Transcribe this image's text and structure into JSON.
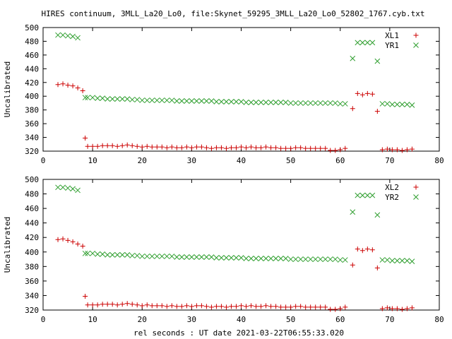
{
  "title": "HIRES continuum, 3MLL_La20_Lo0, file:Skynet_59295_3MLL_La20_Lo0_52802_1767.cyb.txt",
  "colors": {
    "red": "#cc0000",
    "green": "#2e9e2e",
    "axis": "#000000"
  },
  "chart_data": [
    {
      "type": "scatter",
      "title": "HIRES continuum, 3MLL_La20_Lo0, file:Skynet_59295_3MLL_La20_Lo0_52802_1767.cyb.txt",
      "xlabel": "",
      "ylabel": "Uncalibrated",
      "xlim": [
        0,
        80
      ],
      "ylim": [
        320,
        500
      ],
      "xticks": [
        "0",
        "10",
        "20",
        "30",
        "40",
        "50",
        "60",
        "70",
        "80"
      ],
      "yticks": [
        "320",
        "340",
        "360",
        "380",
        "400",
        "420",
        "440",
        "460",
        "480",
        "500"
      ],
      "grid": false,
      "legend": "top-right",
      "series": [
        {
          "name": "XL1",
          "marker": "+",
          "color": "#cc0000",
          "x": [
            3,
            4,
            5,
            6,
            7,
            8,
            8.5,
            9,
            10,
            11,
            12,
            13,
            14,
            15,
            16,
            17,
            18,
            19,
            20,
            21,
            22,
            23,
            24,
            25,
            26,
            27,
            28,
            29,
            30,
            31,
            32,
            33,
            34,
            35,
            36,
            37,
            38,
            39,
            40,
            41,
            42,
            43,
            44,
            45,
            46,
            47,
            48,
            49,
            50,
            51,
            52,
            53,
            54,
            55,
            56,
            57,
            58,
            59,
            60,
            61,
            62.5,
            63.5,
            64.5,
            65.5,
            66.5,
            67.5,
            68.5,
            69.5,
            70.5,
            71.5,
            72.5,
            73.5,
            74.5
          ],
          "y": [
            417,
            418,
            416,
            415,
            412,
            408,
            339,
            327,
            327,
            327,
            328,
            328,
            328,
            327,
            328,
            329,
            328,
            327,
            326,
            327,
            326,
            326,
            326,
            325,
            326,
            325,
            325,
            326,
            325,
            326,
            326,
            325,
            324,
            325,
            325,
            324,
            325,
            325,
            326,
            325,
            326,
            325,
            325,
            326,
            325,
            325,
            324,
            324,
            324,
            325,
            325,
            324,
            324,
            324,
            324,
            324,
            321,
            321,
            322,
            324,
            382,
            404,
            402,
            404,
            403,
            378,
            322,
            323,
            322,
            322,
            321,
            322,
            323
          ]
        },
        {
          "name": "YR1",
          "marker": "x",
          "color": "#2e9e2e",
          "x": [
            3,
            4,
            5,
            6,
            7,
            8.5,
            9,
            10,
            11,
            12,
            13,
            14,
            15,
            16,
            17,
            18,
            19,
            20,
            21,
            22,
            23,
            24,
            25,
            26,
            27,
            28,
            29,
            30,
            31,
            32,
            33,
            34,
            35,
            36,
            37,
            38,
            39,
            40,
            41,
            42,
            43,
            44,
            45,
            46,
            47,
            48,
            49,
            50,
            51,
            52,
            53,
            54,
            55,
            56,
            57,
            58,
            59,
            60,
            61,
            62.5,
            63.5,
            64.5,
            65.5,
            66.5,
            67.5,
            68.5,
            69.5,
            70.5,
            71.5,
            72.5,
            73.5,
            74.5
          ],
          "y": [
            489,
            489,
            488,
            487,
            485,
            398,
            398,
            398,
            397,
            397,
            396,
            396,
            396,
            396,
            396,
            395,
            395,
            394,
            394,
            394,
            394,
            394,
            394,
            394,
            393,
            393,
            393,
            393,
            393,
            393,
            393,
            393,
            392,
            392,
            392,
            392,
            392,
            392,
            391,
            391,
            391,
            391,
            391,
            391,
            391,
            391,
            391,
            390,
            390,
            390,
            390,
            390,
            390,
            390,
            390,
            390,
            390,
            389,
            389,
            455,
            478,
            478,
            478,
            478,
            451,
            389,
            389,
            388,
            388,
            388,
            388,
            387
          ]
        }
      ]
    },
    {
      "type": "scatter",
      "title": "",
      "xlabel": "rel seconds : UT date 2021-03-22T06:55:33.020",
      "ylabel": "Uncalibrated",
      "xlim": [
        0,
        80
      ],
      "ylim": [
        320,
        500
      ],
      "xticks": [
        "0",
        "10",
        "20",
        "30",
        "40",
        "50",
        "60",
        "70",
        "80"
      ],
      "yticks": [
        "320",
        "340",
        "360",
        "380",
        "400",
        "420",
        "440",
        "460",
        "480",
        "500"
      ],
      "grid": false,
      "legend": "top-right",
      "series": [
        {
          "name": "XL2",
          "marker": "+",
          "color": "#cc0000",
          "x": [
            3,
            4,
            5,
            6,
            7,
            8,
            8.5,
            9,
            10,
            11,
            12,
            13,
            14,
            15,
            16,
            17,
            18,
            19,
            20,
            21,
            22,
            23,
            24,
            25,
            26,
            27,
            28,
            29,
            30,
            31,
            32,
            33,
            34,
            35,
            36,
            37,
            38,
            39,
            40,
            41,
            42,
            43,
            44,
            45,
            46,
            47,
            48,
            49,
            50,
            51,
            52,
            53,
            54,
            55,
            56,
            57,
            58,
            59,
            60,
            61,
            62.5,
            63.5,
            64.5,
            65.5,
            66.5,
            67.5,
            68.5,
            69.5,
            70.5,
            71.5,
            72.5,
            73.5,
            74.5
          ],
          "y": [
            417,
            418,
            416,
            414,
            411,
            408,
            339,
            327,
            327,
            327,
            328,
            328,
            328,
            327,
            328,
            329,
            328,
            327,
            326,
            327,
            326,
            326,
            326,
            325,
            326,
            325,
            325,
            326,
            325,
            326,
            326,
            325,
            324,
            325,
            325,
            324,
            325,
            325,
            326,
            325,
            326,
            325,
            325,
            326,
            325,
            325,
            324,
            324,
            324,
            325,
            325,
            324,
            324,
            324,
            324,
            324,
            321,
            321,
            322,
            324,
            382,
            404,
            402,
            404,
            403,
            378,
            322,
            323,
            322,
            322,
            321,
            322,
            323
          ]
        },
        {
          "name": "YR2",
          "marker": "x",
          "color": "#2e9e2e",
          "x": [
            3,
            4,
            5,
            6,
            7,
            8.5,
            9,
            10,
            11,
            12,
            13,
            14,
            15,
            16,
            17,
            18,
            19,
            20,
            21,
            22,
            23,
            24,
            25,
            26,
            27,
            28,
            29,
            30,
            31,
            32,
            33,
            34,
            35,
            36,
            37,
            38,
            39,
            40,
            41,
            42,
            43,
            44,
            45,
            46,
            47,
            48,
            49,
            50,
            51,
            52,
            53,
            54,
            55,
            56,
            57,
            58,
            59,
            60,
            61,
            62.5,
            63.5,
            64.5,
            65.5,
            66.5,
            67.5,
            68.5,
            69.5,
            70.5,
            71.5,
            72.5,
            73.5,
            74.5
          ],
          "y": [
            489,
            489,
            488,
            487,
            485,
            398,
            398,
            398,
            397,
            397,
            396,
            396,
            396,
            396,
            396,
            395,
            395,
            394,
            394,
            394,
            394,
            394,
            394,
            394,
            393,
            393,
            393,
            393,
            393,
            393,
            393,
            393,
            392,
            392,
            392,
            392,
            392,
            392,
            391,
            391,
            391,
            391,
            391,
            391,
            391,
            391,
            391,
            390,
            390,
            390,
            390,
            390,
            390,
            390,
            390,
            390,
            390,
            389,
            389,
            455,
            478,
            478,
            478,
            478,
            451,
            389,
            389,
            388,
            388,
            388,
            388,
            387
          ]
        }
      ]
    }
  ]
}
